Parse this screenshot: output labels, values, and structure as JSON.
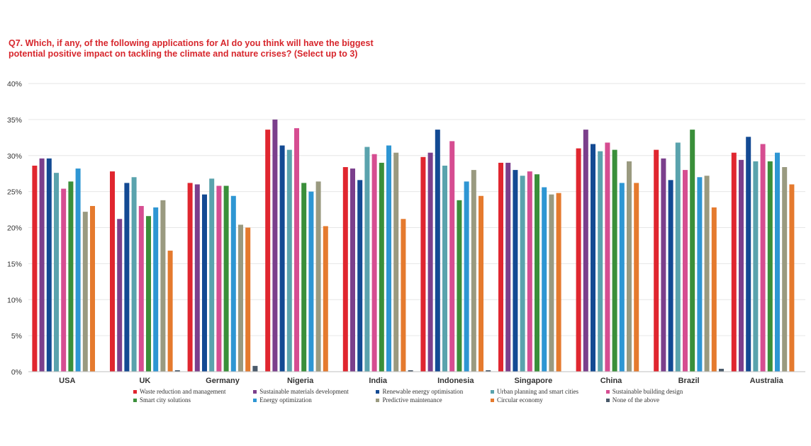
{
  "title": "Q7. Which, if any, of the following applications for AI do you think will have the biggest\npotential positive impact on tackling the climate and nature crises? (Select up to 3)",
  "chart_data": {
    "type": "bar",
    "title": "Q7. Which, if any, of the following applications for AI do you think will have the biggest potential positive impact on tackling the climate and nature crises? (Select up to 3)",
    "xlabel": "",
    "ylabel": "",
    "ylim": [
      0,
      40
    ],
    "yticks": [
      "0%",
      "5%",
      "10%",
      "15%",
      "20%",
      "25%",
      "30%",
      "35%",
      "40%"
    ],
    "grid": true,
    "legend_position": "bottom",
    "categories": [
      "USA",
      "UK",
      "Germany",
      "Nigeria",
      "India",
      "Indonesia",
      "Singapore",
      "China",
      "Brazil",
      "Australia"
    ],
    "series": [
      {
        "name": "Waste reduction and management",
        "color": "#e0262f",
        "values": [
          28.6,
          27.8,
          26.2,
          33.6,
          28.4,
          29.8,
          29.0,
          31.0,
          30.8,
          30.4
        ]
      },
      {
        "name": "Sustainable materials development",
        "color": "#7b3f8c",
        "values": [
          29.6,
          21.2,
          26.0,
          35.0,
          28.2,
          30.4,
          29.0,
          33.6,
          29.6,
          29.4
        ]
      },
      {
        "name": "Renewable energy optimisation",
        "color": "#134a93",
        "values": [
          29.6,
          26.2,
          24.6,
          31.4,
          26.6,
          33.6,
          28.0,
          31.6,
          26.6,
          32.6
        ]
      },
      {
        "name": "Urban planning and smart cities",
        "color": "#5aa3ad",
        "values": [
          27.6,
          27.0,
          26.8,
          30.8,
          31.2,
          28.6,
          27.2,
          30.6,
          31.8,
          29.2
        ]
      },
      {
        "name": "Sustainable building design",
        "color": "#d64d91",
        "values": [
          25.4,
          23.0,
          25.8,
          33.8,
          30.2,
          32.0,
          27.8,
          31.8,
          28.0,
          31.6
        ]
      },
      {
        "name": "Smart city solutions",
        "color": "#3a8f3a",
        "values": [
          26.4,
          21.6,
          25.8,
          26.2,
          29.0,
          23.8,
          27.4,
          30.8,
          33.6,
          29.2
        ]
      },
      {
        "name": "Energy optimization",
        "color": "#2e96d3",
        "values": [
          28.2,
          22.8,
          24.4,
          25.0,
          31.4,
          26.4,
          25.6,
          26.2,
          27.0,
          30.4
        ]
      },
      {
        "name": "Predictive maintenance",
        "color": "#9a9a80",
        "values": [
          22.2,
          23.8,
          20.4,
          26.4,
          30.4,
          28.0,
          24.6,
          29.2,
          27.2,
          28.4
        ]
      },
      {
        "name": "Circular economy",
        "color": "#e57a2e",
        "values": [
          23.0,
          16.8,
          20.0,
          20.2,
          21.2,
          24.4,
          24.8,
          26.2,
          22.8,
          26.0
        ]
      },
      {
        "name": "None of the above",
        "color": "#4a5a6a",
        "values": [
          0,
          0.2,
          0.8,
          0,
          0.2,
          0.2,
          0,
          0,
          0.4,
          0
        ]
      }
    ]
  }
}
